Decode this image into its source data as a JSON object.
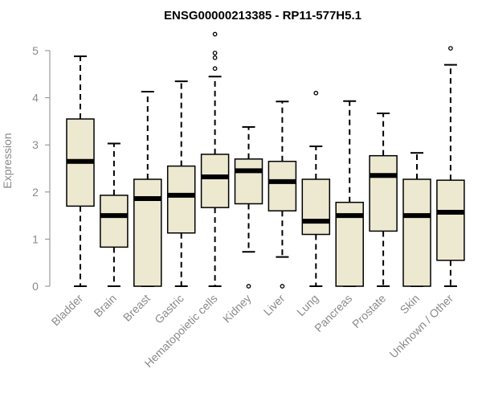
{
  "chart_data": {
    "type": "box",
    "title": "ENSG00000213385 - RP11-577H5.1",
    "xlabel": "",
    "ylabel": "Expression",
    "ylim": [
      0,
      5.4
    ],
    "yticks": [
      0,
      1,
      2,
      3,
      4,
      5
    ],
    "grid": false,
    "box_fill": "#ede8d0",
    "stroke": "#000000",
    "axis_color": "#8a8a8a",
    "categories": [
      "Bladder",
      "Brain",
      "Breast",
      "Gastric",
      "Hematopoietic cells",
      "Kidney",
      "Liver",
      "Lung",
      "Pancreas",
      "Prostate",
      "Skin",
      "Unknown / Other"
    ],
    "boxes": [
      {
        "whisker_low": 0,
        "q1": 1.7,
        "median": 2.65,
        "q3": 3.55,
        "whisker_high": 4.88,
        "outliers": []
      },
      {
        "whisker_low": 0,
        "q1": 0.83,
        "median": 1.5,
        "q3": 1.93,
        "whisker_high": 3.03,
        "outliers": []
      },
      {
        "whisker_low": 0,
        "q1": 0,
        "median": 1.86,
        "q3": 2.27,
        "whisker_high": 4.13,
        "outliers": []
      },
      {
        "whisker_low": 0,
        "q1": 1.13,
        "median": 1.93,
        "q3": 2.55,
        "whisker_high": 4.35,
        "outliers": []
      },
      {
        "whisker_low": 0,
        "q1": 1.67,
        "median": 2.32,
        "q3": 2.8,
        "whisker_high": 4.45,
        "outliers": [
          4.62,
          4.85,
          4.95,
          5.35
        ]
      },
      {
        "whisker_low": 0.73,
        "q1": 1.75,
        "median": 2.45,
        "q3": 2.7,
        "whisker_high": 3.38,
        "outliers": [
          0
        ]
      },
      {
        "whisker_low": 0.62,
        "q1": 1.6,
        "median": 2.22,
        "q3": 2.65,
        "whisker_high": 3.92,
        "outliers": [
          0
        ]
      },
      {
        "whisker_low": 0,
        "q1": 1.1,
        "median": 1.38,
        "q3": 2.27,
        "whisker_high": 2.97,
        "outliers": [
          4.1
        ]
      },
      {
        "whisker_low": 0,
        "q1": 0,
        "median": 1.5,
        "q3": 1.78,
        "whisker_high": 3.93,
        "outliers": []
      },
      {
        "whisker_low": 0,
        "q1": 1.17,
        "median": 2.35,
        "q3": 2.77,
        "whisker_high": 3.67,
        "outliers": []
      },
      {
        "whisker_low": 0,
        "q1": 0,
        "median": 1.5,
        "q3": 2.27,
        "whisker_high": 2.83,
        "outliers": []
      },
      {
        "whisker_low": 0,
        "q1": 0.55,
        "median": 1.57,
        "q3": 2.25,
        "whisker_high": 4.7,
        "outliers": [
          5.05
        ]
      }
    ]
  }
}
